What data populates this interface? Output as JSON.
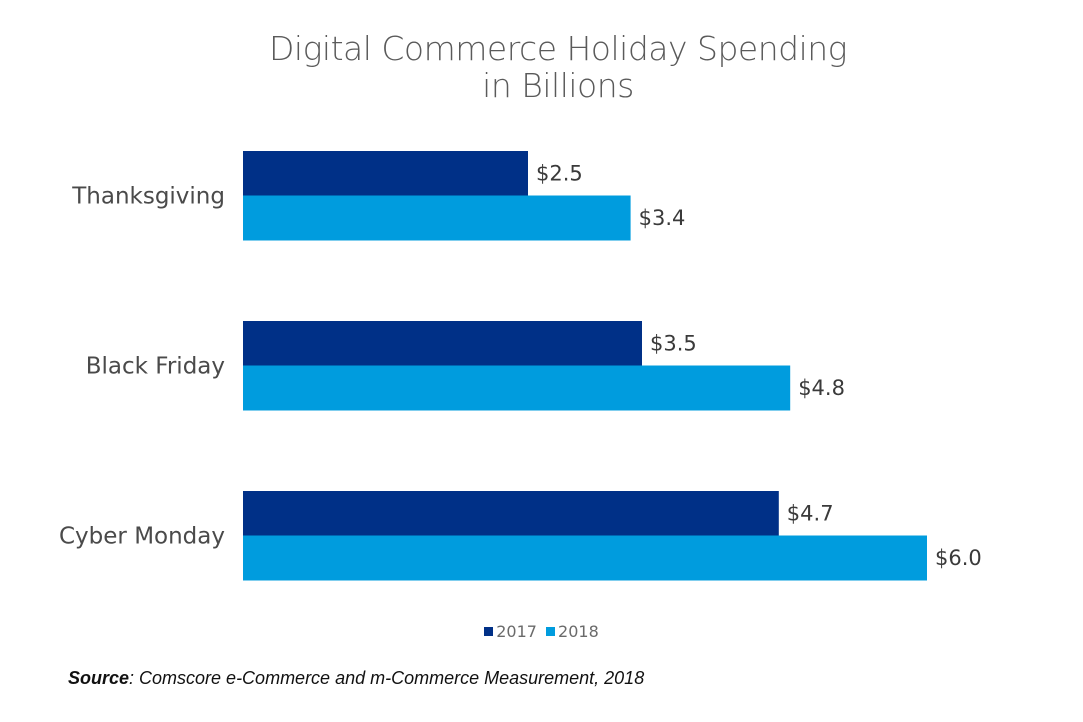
{
  "chart_data": {
    "type": "bar",
    "orientation": "horizontal",
    "title": "Digital Commerce Holiday Spending",
    "subtitle": "in Billions",
    "categories": [
      "Thanksgiving",
      "Black Friday",
      "Cyber Monday"
    ],
    "series": [
      {
        "name": "2017",
        "color": "#003087",
        "values": [
          2.5,
          3.5,
          4.7
        ],
        "labels": [
          "$2.5",
          "$3.5",
          "$4.7"
        ]
      },
      {
        "name": "2018",
        "color": "#009cde",
        "values": [
          3.4,
          4.8,
          6.0
        ],
        "labels": [
          "$3.4",
          "$4.8",
          "$6.0"
        ]
      }
    ],
    "xlabel": "",
    "ylabel": "",
    "xlim": [
      0,
      6.0
    ],
    "grid": false,
    "legend_position": "bottom-center"
  },
  "source": {
    "label": "Source",
    "text": ": Comscore e-Commerce and m-Commerce Measurement, 2018"
  }
}
